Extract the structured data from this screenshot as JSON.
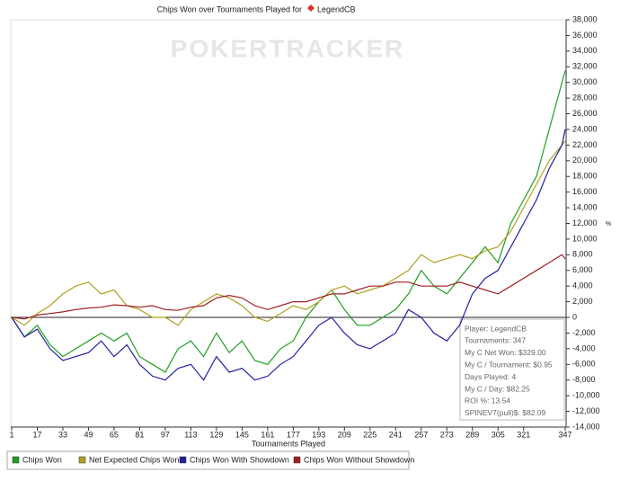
{
  "chart_data": {
    "type": "line",
    "title": "Chips Won over Tournaments Played for",
    "player": "LegendCB",
    "watermark": "POKERTRACKER",
    "x_label": "Tournaments Played",
    "y_label": "%",
    "x": [
      1,
      9,
      17,
      25,
      33,
      41,
      49,
      57,
      65,
      73,
      81,
      89,
      97,
      105,
      113,
      121,
      129,
      137,
      145,
      153,
      161,
      169,
      177,
      185,
      193,
      201,
      209,
      217,
      225,
      233,
      241,
      249,
      257,
      265,
      273,
      281,
      289,
      297,
      305,
      313,
      321,
      329,
      337,
      345,
      347
    ],
    "series": [
      {
        "name": "Chips Won",
        "color": "#1fa01f",
        "values": [
          0,
          -2500,
          -1000,
          -3500,
          -5000,
          -4000,
          -3000,
          -2000,
          -3000,
          -2000,
          -5000,
          -6000,
          -7000,
          -4000,
          -3000,
          -5000,
          -2000,
          -4500,
          -3000,
          -5500,
          -6000,
          -4000,
          -3000,
          0,
          2000,
          3500,
          1000,
          -1000,
          -1000,
          0,
          1000,
          3000,
          6000,
          4000,
          3000,
          5000,
          7000,
          9000,
          7000,
          12000,
          15000,
          18000,
          24000,
          30000,
          31500
        ]
      },
      {
        "name": "Net Expected Chips Won",
        "color": "#b0a020",
        "values": [
          0,
          -1000,
          500,
          1500,
          3000,
          4000,
          4500,
          3000,
          3500,
          1500,
          1000,
          0,
          0,
          -1000,
          1000,
          2000,
          3000,
          2500,
          1500,
          0,
          -500,
          500,
          1500,
          1000,
          2000,
          3500,
          4000,
          3000,
          3500,
          4000,
          5000,
          6000,
          8000,
          7000,
          7500,
          8000,
          7500,
          8500,
          9000,
          11000,
          14000,
          17000,
          20000,
          22000,
          22500
        ]
      },
      {
        "name": "Chips Won With Showdown",
        "color": "#2020a0",
        "values": [
          0,
          -2500,
          -1500,
          -4000,
          -5500,
          -5000,
          -4500,
          -3000,
          -5000,
          -3500,
          -6000,
          -7500,
          -8000,
          -6500,
          -6000,
          -8000,
          -5000,
          -7000,
          -6500,
          -8000,
          -7500,
          -6000,
          -5000,
          -3000,
          -1000,
          0,
          -2000,
          -3500,
          -4000,
          -3000,
          -2000,
          1000,
          0,
          -2000,
          -3000,
          -1000,
          3000,
          5000,
          6000,
          9000,
          12000,
          15000,
          19000,
          22000,
          24000
        ]
      },
      {
        "name": "Chips Won Without Showdown",
        "color": "#a02020",
        "values": [
          0,
          -200,
          300,
          500,
          700,
          1000,
          1200,
          1300,
          1600,
          1500,
          1300,
          1500,
          1000,
          900,
          1300,
          1500,
          2500,
          2800,
          2500,
          1500,
          1000,
          1500,
          2000,
          2000,
          2500,
          3000,
          3000,
          3500,
          4000,
          4000,
          4500,
          4500,
          4000,
          4000,
          4000,
          4500,
          4000,
          3500,
          3000,
          4000,
          5000,
          6000,
          7000,
          8000,
          7500
        ]
      }
    ],
    "xlim": [
      1,
      347
    ],
    "xticks": [
      1,
      17,
      33,
      49,
      65,
      81,
      97,
      113,
      129,
      145,
      161,
      177,
      193,
      209,
      225,
      241,
      257,
      273,
      289,
      305,
      321,
      347
    ],
    "ylim": [
      -14000,
      38000
    ],
    "yticks": [
      {
        "value": -14000,
        "label": "-14,000"
      },
      {
        "value": -12000,
        "label": "-12,000"
      },
      {
        "value": -10000,
        "label": "-10,000"
      },
      {
        "value": -8000,
        "label": "-8,000"
      },
      {
        "value": -6000,
        "label": "-6,000"
      },
      {
        "value": -4000,
        "label": "-4,000"
      },
      {
        "value": -2000,
        "label": "-2,000"
      },
      0,
      {
        "value": 2000,
        "label": "2,000"
      },
      {
        "value": 4000,
        "label": "4,000"
      },
      {
        "value": 6000,
        "label": "6,000"
      },
      {
        "value": 8000,
        "label": "8,000"
      },
      {
        "value": 10000,
        "label": "10,000"
      },
      {
        "value": 12000,
        "label": "12,000"
      },
      {
        "value": 14000,
        "label": "14,000"
      },
      {
        "value": 16000,
        "label": "16,000"
      },
      {
        "value": 18000,
        "label": "18,000"
      },
      {
        "value": 20000,
        "label": "20,000"
      },
      {
        "value": 22000,
        "label": "22,000"
      },
      {
        "value": 24000,
        "label": "24,000"
      },
      {
        "value": 26000,
        "label": "26,000"
      },
      {
        "value": 28000,
        "label": "28,000"
      },
      {
        "value": 30000,
        "label": "30,000"
      },
      {
        "value": 32000,
        "label": "32,000"
      },
      {
        "value": 34000,
        "label": "34,000"
      },
      {
        "value": 36000,
        "label": "36,000"
      },
      {
        "value": 38000,
        "label": "38,000"
      }
    ],
    "info": [
      "Player: LegendCB",
      "Tournaments: 347",
      "My C Net Won: $329.00",
      "My C / Tournament: $0.95",
      "Days Played: 4",
      "My C / Day: $82.25",
      "ROI %: 13.54",
      "SPINEV7(pull)$: $82.09"
    ]
  }
}
